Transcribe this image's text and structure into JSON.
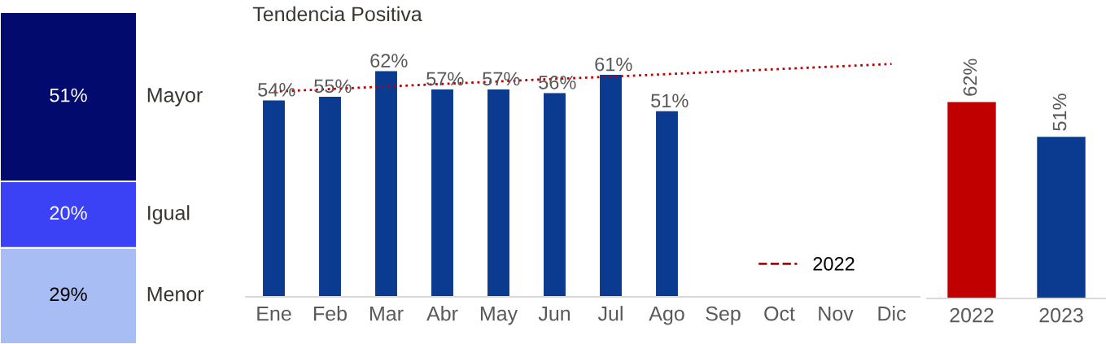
{
  "chart_data": [
    {
      "type": "bar",
      "stacked": true,
      "categories": [
        null
      ],
      "tick_labels": false,
      "legend": false,
      "series": [
        {
          "name": "Menor",
          "color": "#a9bdf5",
          "values": [
            29
          ],
          "value_labels": [
            "29%"
          ]
        },
        {
          "name": "Igual",
          "color": "#3b42f5",
          "values": [
            20
          ],
          "value_labels": [
            "20%"
          ]
        },
        {
          "name": "Mayor",
          "color": "#030a6e",
          "values": [
            51
          ],
          "value_labels": [
            "51%"
          ]
        }
      ]
    },
    {
      "type": "bar",
      "title": "Tendencia Positiva",
      "categories": [
        "Ene",
        "Feb",
        "Mar",
        "Abr",
        "May",
        "Jun",
        "Jul",
        "Ago",
        "Sep",
        "Oct",
        "Nov",
        "Dic"
      ],
      "tick_labels": "x",
      "legend": "bottom right",
      "series": [
        {
          "color": "#0b3a91",
          "values": [
            54,
            55,
            62,
            57,
            57,
            56,
            61,
            51,
            null,
            null,
            null,
            null
          ],
          "value_labels": [
            "54%",
            "55%",
            "62%",
            "57%",
            "57%",
            "56%",
            "61%",
            "51%",
            null,
            null,
            null,
            null
          ]
        },
        {
          "name": "2022",
          "type": "line",
          "line_style": "dotted",
          "color": "#c00000",
          "values": [
            56.4,
            57.1,
            57.8,
            58.5,
            59.2,
            59.9,
            60.5,
            61.2,
            61.9,
            62.6,
            63.3,
            64.0
          ]
        }
      ]
    },
    {
      "type": "bar",
      "categories": [
        "2022",
        "2023"
      ],
      "tick_labels": "x",
      "legend": false,
      "values": [
        62,
        51
      ],
      "colors": [
        "#c00000",
        "#0b3a91"
      ],
      "value_labels": [
        "62%",
        "51%"
      ]
    }
  ]
}
